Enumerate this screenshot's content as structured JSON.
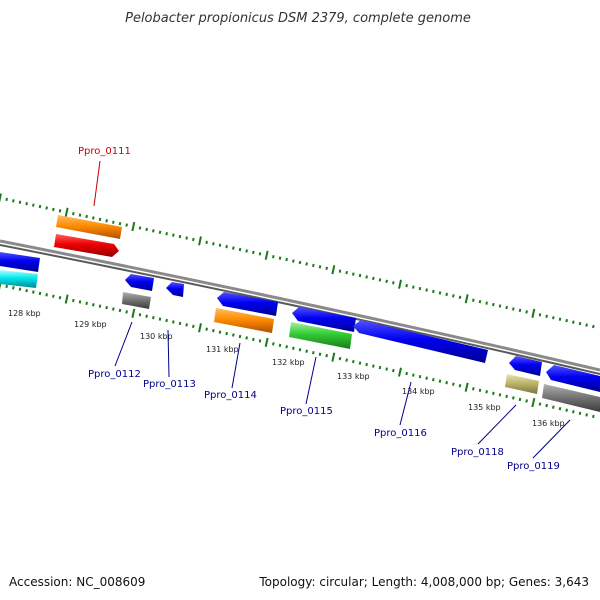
{
  "title": "Pelobacter propionicus DSM 2379, complete genome",
  "footer": {
    "accession": "Accession: NC_008609",
    "summary": "Topology: circular; Length: 4,008,000 bp; Genes: 3,643"
  },
  "colors": {
    "backbone": "#888888",
    "tick": "#1a7a1a",
    "label_default": "#00008b",
    "label_highlight": "#cc0000",
    "gene_blue": "#0000ee",
    "gene_orange": "#ff8c00",
    "gene_red": "#ee0000",
    "gene_cyan": "#00e5ee",
    "gene_gray": "#777777",
    "gene_green": "#33cc33",
    "gene_khaki": "#bdb76b"
  },
  "ruler": {
    "kbp_labels": [
      "128 kbp",
      "129 kbp",
      "130 kbp",
      "131 kbp",
      "132 kbp",
      "133 kbp",
      "134 kbp",
      "135 kbp",
      "136 kbp"
    ]
  },
  "gene_labels": [
    {
      "text": "Ppro_0111",
      "highlight": true
    },
    {
      "text": "Ppro_0112",
      "highlight": false
    },
    {
      "text": "Ppro_0113",
      "highlight": false
    },
    {
      "text": "Ppro_0114",
      "highlight": false
    },
    {
      "text": "Ppro_0115",
      "highlight": false
    },
    {
      "text": "Ppro_0116",
      "highlight": false
    },
    {
      "text": "Ppro_0118",
      "highlight": false
    },
    {
      "text": "Ppro_0119",
      "highlight": false
    }
  ],
  "features": [
    {
      "name": "gene-cyan-left",
      "color": "cyan",
      "strand": "+"
    },
    {
      "name": "gene-blue-left",
      "color": "blue",
      "strand": "-"
    },
    {
      "name": "gene-ppro-0111-cds",
      "color": "orange",
      "strand": "+"
    },
    {
      "name": "gene-ppro-0111-gene",
      "color": "red",
      "strand": "+"
    },
    {
      "name": "gene-ppro-0112-gene",
      "color": "blue",
      "strand": "-"
    },
    {
      "name": "gene-ppro-0112-cds",
      "color": "gray",
      "strand": "-"
    },
    {
      "name": "gene-ppro-0113-gene",
      "color": "blue",
      "strand": "-"
    },
    {
      "name": "gene-ppro-0114-gene",
      "color": "blue",
      "strand": "-"
    },
    {
      "name": "gene-ppro-0114-cds",
      "color": "orange",
      "strand": "-"
    },
    {
      "name": "gene-ppro-0115-gene",
      "color": "blue",
      "strand": "-"
    },
    {
      "name": "gene-ppro-0115-cds",
      "color": "green",
      "strand": "-"
    },
    {
      "name": "gene-ppro-0116-gene",
      "color": "blue",
      "strand": "-"
    },
    {
      "name": "gene-ppro-0118-gene",
      "color": "blue",
      "strand": "-"
    },
    {
      "name": "gene-ppro-0118-cds",
      "color": "khaki",
      "strand": "-"
    },
    {
      "name": "gene-ppro-0119-gene",
      "color": "blue",
      "strand": "-"
    },
    {
      "name": "gene-ppro-0119-cds",
      "color": "gray",
      "strand": "-"
    }
  ]
}
